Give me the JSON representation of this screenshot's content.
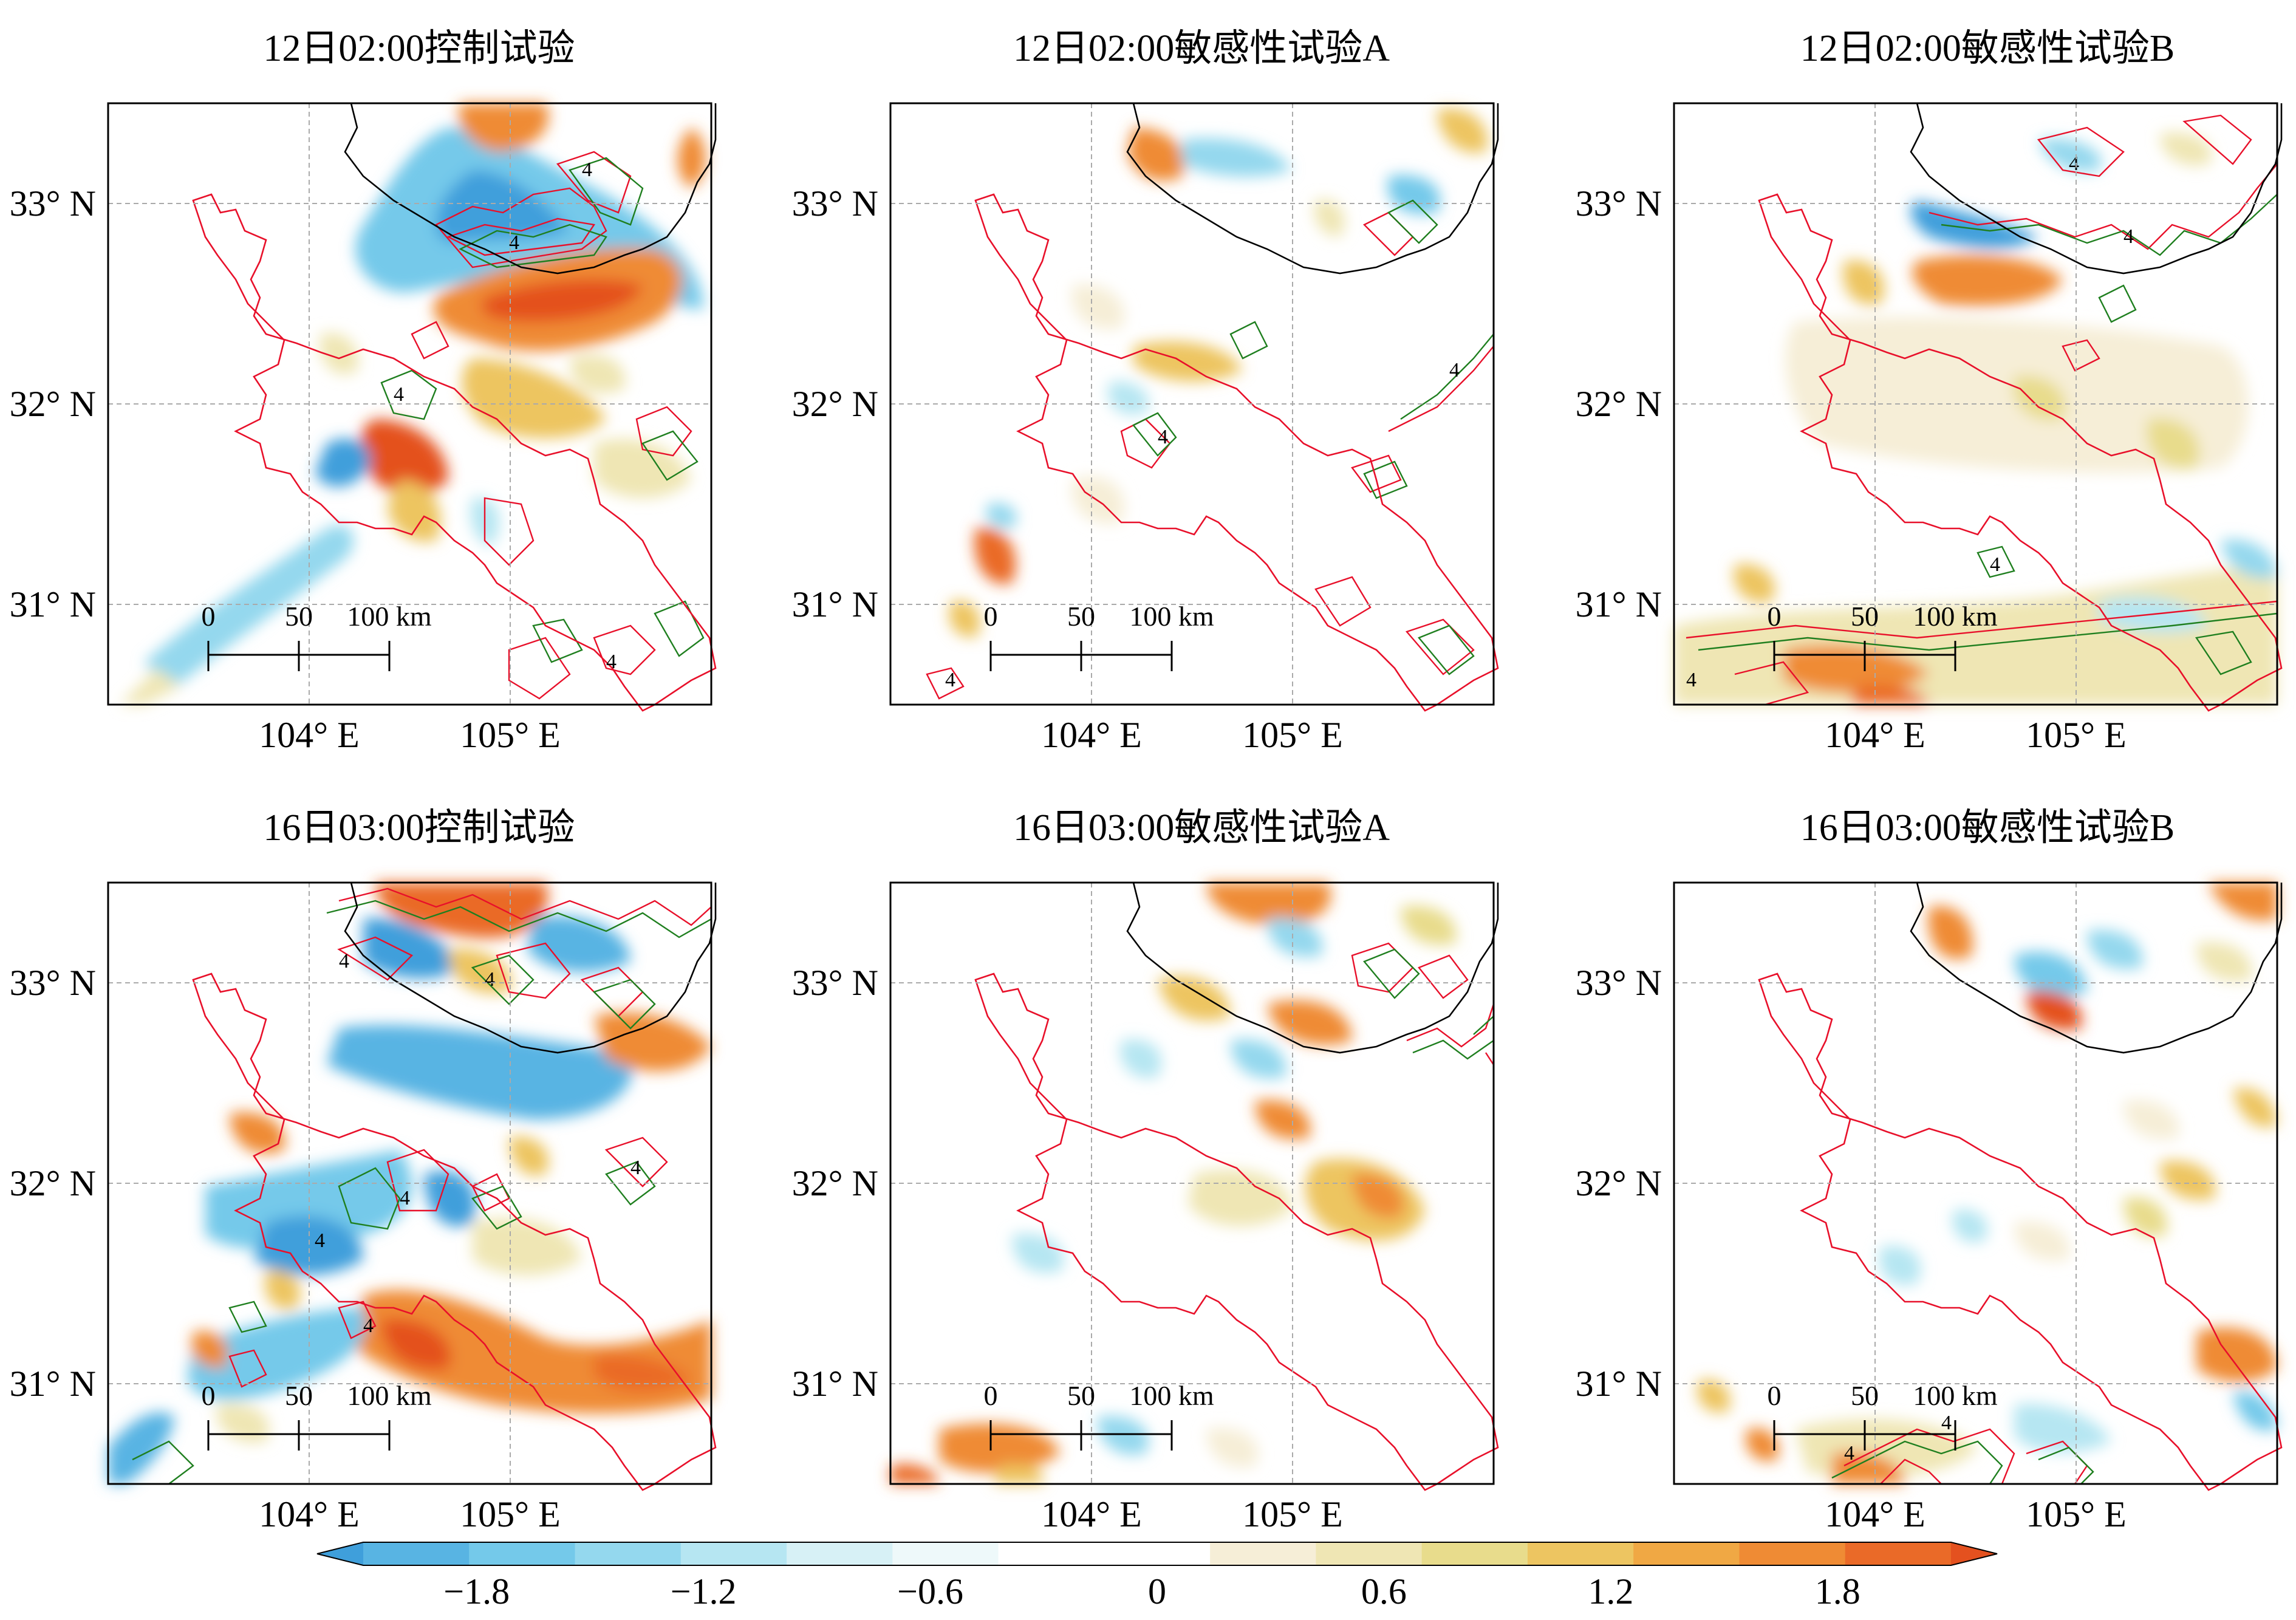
{
  "figure": {
    "panels": [
      {
        "id": "p1",
        "title": "12日02:00控制试验"
      },
      {
        "id": "p2",
        "title": "12日02:00敏感性试验A"
      },
      {
        "id": "p3",
        "title": "12日02:00敏感性试验B"
      },
      {
        "id": "p4",
        "title": "16日03:00控制试验"
      },
      {
        "id": "p5",
        "title": "16日03:00敏感性试验A"
      },
      {
        "id": "p6",
        "title": "16日03:00敏感性试验B"
      }
    ],
    "lat_ticks": [
      "33° N",
      "32° N",
      "31° N"
    ],
    "lon_ticks": [
      "104° E",
      "105° E"
    ],
    "lon_range": [
      103.0,
      106.0
    ],
    "lat_range": [
      30.5,
      33.5
    ],
    "scale_bar": {
      "labels": [
        "0",
        "50",
        "100 km"
      ]
    },
    "contour_label": "4",
    "colorbar": {
      "ticks": [
        "−1.8",
        "−1.2",
        "−0.6",
        "0",
        "0.6",
        "1.2",
        "1.8"
      ],
      "range": [
        -2.1,
        2.1
      ],
      "extend": "both",
      "colors": [
        "#3f9fdb",
        "#58b4e3",
        "#74c9ea",
        "#94d8ee",
        "#b6e6f2",
        "#d7f1f6",
        "#eef9fa",
        "#ffffff",
        "#ffffff",
        "#f6eed7",
        "#efe6b4",
        "#e8dc8c",
        "#edc561",
        "#f0a844",
        "#ef8b34",
        "#ea6a28",
        "#e4511f"
      ]
    },
    "colors": {
      "county_boundary": "#e8102a",
      "province_boundary": "#000000",
      "contour_red": "#e8102a",
      "contour_green": "#1f7f1f",
      "grid": "#aaaaaa"
    }
  }
}
